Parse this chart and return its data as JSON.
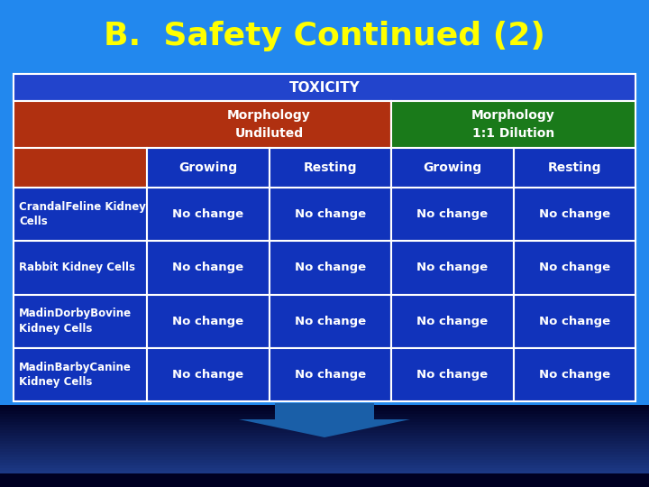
{
  "title": "B.  Safety Continued (2)",
  "title_color": "#FFFF00",
  "title_fontsize": 26,
  "bg_top_color": "#2288FF",
  "bg_bottom_color": "#000033",
  "toxicity_label": "TOXICITY",
  "toxicity_bg": "#2244CC",
  "toxicity_text_color": "#FFFFFF",
  "header1_label": "Morphology\nUndiluted",
  "header1_bg": "#B03010",
  "header2_label": "Morphology\n1:1 Dilution",
  "header2_bg": "#1A7A1A",
  "header_text_color": "#FFFFFF",
  "subheader_bg": "#1133BB",
  "subheader_text_color": "#FFFFFF",
  "col_headers": [
    "Growing",
    "Resting",
    "Growing",
    "Resting"
  ],
  "row_labels": [
    "CrandalFeline Kidney\nCells",
    "Rabbit Kidney Cells",
    "MadinDorbyBovine\nKidney Cells",
    "MadinBarbyCanine\nKidney Cells"
  ],
  "row_label_bg": "#1133BB",
  "row_label_text": "#FFFFFF",
  "cell_value": "No change",
  "cell_bg": "#1133BB",
  "cell_text": "#FFFFFF",
  "border_color": "#FFFFFF",
  "arrow_color": "#1a5fa8"
}
